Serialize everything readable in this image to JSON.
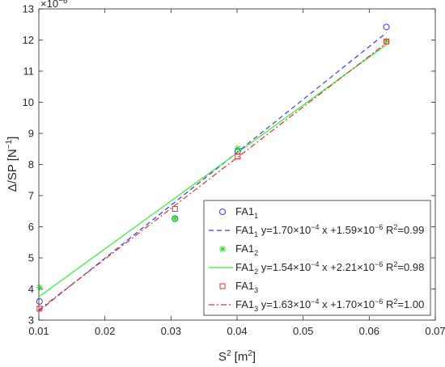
{
  "chart_data": {
    "type": "scatter",
    "xlabel": "S",
    "xlabel_sup": "2",
    "xlabel_unit": " [m",
    "xlabel_unit_sup": "2",
    "xlabel_close": "]",
    "ylabel": "Δ/SP [N",
    "ylabel_sup": "−1",
    "ylabel_close": "]",
    "y_multiplier_base": "×10",
    "y_multiplier_exp": "−6",
    "xlim": [
      0.01,
      0.07
    ],
    "ylim": [
      3,
      13
    ],
    "x_ticks": [
      0.01,
      0.02,
      0.03,
      0.04,
      0.05,
      0.06,
      0.07
    ],
    "x_tick_labels": [
      "0.01",
      "0.02",
      "0.03",
      "0.04",
      "0.05",
      "0.06",
      "0.07"
    ],
    "y_ticks": [
      3,
      4,
      5,
      6,
      7,
      8,
      9,
      10,
      11,
      12,
      13
    ],
    "y_tick_labels": [
      "3",
      "4",
      "5",
      "6",
      "7",
      "8",
      "9",
      "10",
      "11",
      "12",
      "13"
    ],
    "grid": false,
    "legend_position": "bottom-right",
    "series": [
      {
        "name": "FA1",
        "sub": "1",
        "marker": "circle",
        "color": "#3b3bdc",
        "x": [
          0.0101,
          0.0306,
          0.0401,
          0.0626
        ],
        "y": [
          3.6,
          6.26,
          8.42,
          12.42
        ]
      },
      {
        "name": "FA1",
        "sub": "2",
        "marker": "star",
        "color": "#22dd22",
        "x": [
          0.0101,
          0.0306,
          0.0401,
          0.0626
        ],
        "y": [
          4.05,
          6.27,
          8.52,
          11.97
        ]
      },
      {
        "name": "FA1",
        "sub": "3",
        "marker": "square",
        "color": "#dd3333",
        "x": [
          0.0101,
          0.0306,
          0.0401,
          0.0626
        ],
        "y": [
          3.37,
          6.57,
          8.26,
          11.95
        ]
      }
    ],
    "fits": [
      {
        "name": "FA1",
        "sub": "1",
        "style": "dashed",
        "color": "#3b3bdc",
        "eq": " y=1.70×10",
        "exp1": "−4",
        "mid": " x +1.59×10",
        "exp2": "−6",
        "r2": " R",
        "r2sup": "2",
        "r2val": "=0.99",
        "slope": 170,
        "intercept": 1.59,
        "x_range": [
          0.01,
          0.0626
        ]
      },
      {
        "name": "FA1",
        "sub": "2",
        "style": "solid",
        "color": "#33ee33",
        "eq": " y=1.54×10",
        "exp1": "−4",
        "mid": " x +2.21×10",
        "exp2": "−6",
        "r2": " R",
        "r2sup": "2",
        "r2val": "=0.98",
        "slope": 154,
        "intercept": 2.21,
        "x_range": [
          0.01,
          0.0626
        ]
      },
      {
        "name": "FA1",
        "sub": "3",
        "style": "dashdot",
        "color": "#dd3333",
        "eq": " y=1.63×10",
        "exp1": "−4",
        "mid": " x +1.70×10",
        "exp2": "−6",
        "r2": " R",
        "r2sup": "2",
        "r2val": "=1.00",
        "slope": 163,
        "intercept": 1.7,
        "x_range": [
          0.01,
          0.0626
        ]
      }
    ],
    "legend_order": [
      {
        "kind": "series",
        "index": 0
      },
      {
        "kind": "fit",
        "index": 0
      },
      {
        "kind": "series",
        "index": 1
      },
      {
        "kind": "fit",
        "index": 1
      },
      {
        "kind": "series",
        "index": 2
      },
      {
        "kind": "fit",
        "index": 2
      }
    ]
  }
}
